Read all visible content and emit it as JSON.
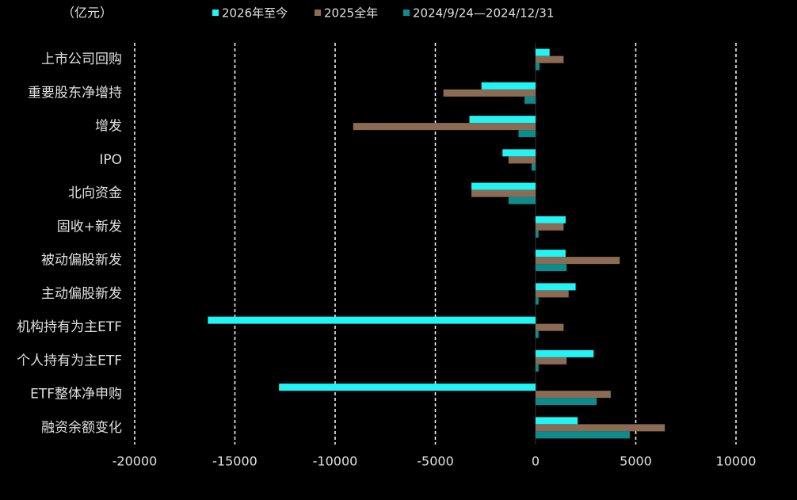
{
  "chart_data": {
    "type": "hbar",
    "unit_label": "（亿元）",
    "categories": [
      "上市公司回购",
      "重要股东净增持",
      "增发",
      "IPO",
      "北向资金",
      "固收+新发",
      "被动偏股新发",
      "主动偏股新发",
      "机构持有为主ETF",
      "个人持有为主ETF",
      "ETF整体净申购",
      "融资余额变化"
    ],
    "series": [
      {
        "name": "2026年至今",
        "color": "#22f4f4",
        "values": [
          700,
          -2700,
          -3300,
          -1650,
          -3200,
          1500,
          1500,
          2000,
          -16350,
          2900,
          -12800,
          2100
        ]
      },
      {
        "name": "2025全年",
        "color": "#8c6b55",
        "values": [
          1400,
          -4600,
          -9100,
          -1350,
          -3200,
          1400,
          4200,
          1650,
          1400,
          1550,
          3750,
          6450
        ]
      },
      {
        "name": "2024/9/24—2024/12/31",
        "color": "#0e8c8c",
        "values": [
          200,
          -550,
          -850,
          -200,
          -1350,
          150,
          1550,
          150,
          150,
          150,
          3050,
          4700
        ]
      }
    ],
    "xlim": [
      -20000,
      10000
    ],
    "xticks": [
      -20000,
      -15000,
      -10000,
      -5000,
      0,
      5000,
      10000
    ],
    "grid": true
  }
}
